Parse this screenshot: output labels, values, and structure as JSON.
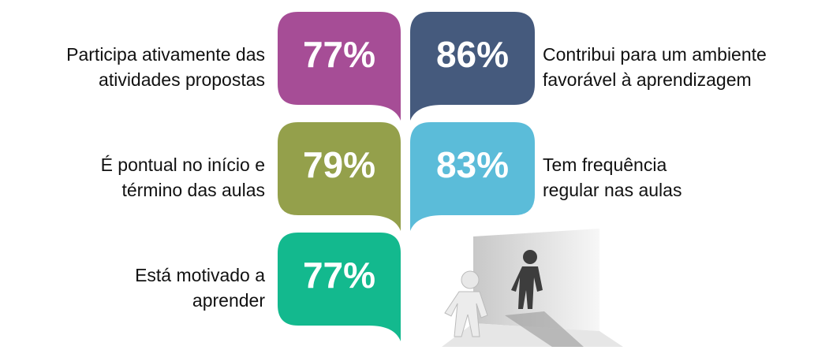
{
  "items": [
    {
      "label": [
        "Participa ativamente das",
        "atividades propostas"
      ],
      "value": "77%",
      "color": "#a64d96",
      "side": "left",
      "row": 0
    },
    {
      "label": [
        "Contribui para um ambiente",
        "favorável à aprendizagem"
      ],
      "value": "86%",
      "color": "#455a7d",
      "side": "right",
      "row": 0
    },
    {
      "label": [
        "É pontual no início e",
        "término das aulas"
      ],
      "value": "79%",
      "color": "#94a04b",
      "side": "left",
      "row": 1
    },
    {
      "label": [
        "Tem frequência",
        "regular nas aulas"
      ],
      "value": "83%",
      "color": "#5bbcd9",
      "side": "right",
      "row": 1
    },
    {
      "label": [
        "Está motivado a",
        "aprender"
      ],
      "value": "77%",
      "color": "#13b98e",
      "side": "left",
      "row": 2
    }
  ]
}
